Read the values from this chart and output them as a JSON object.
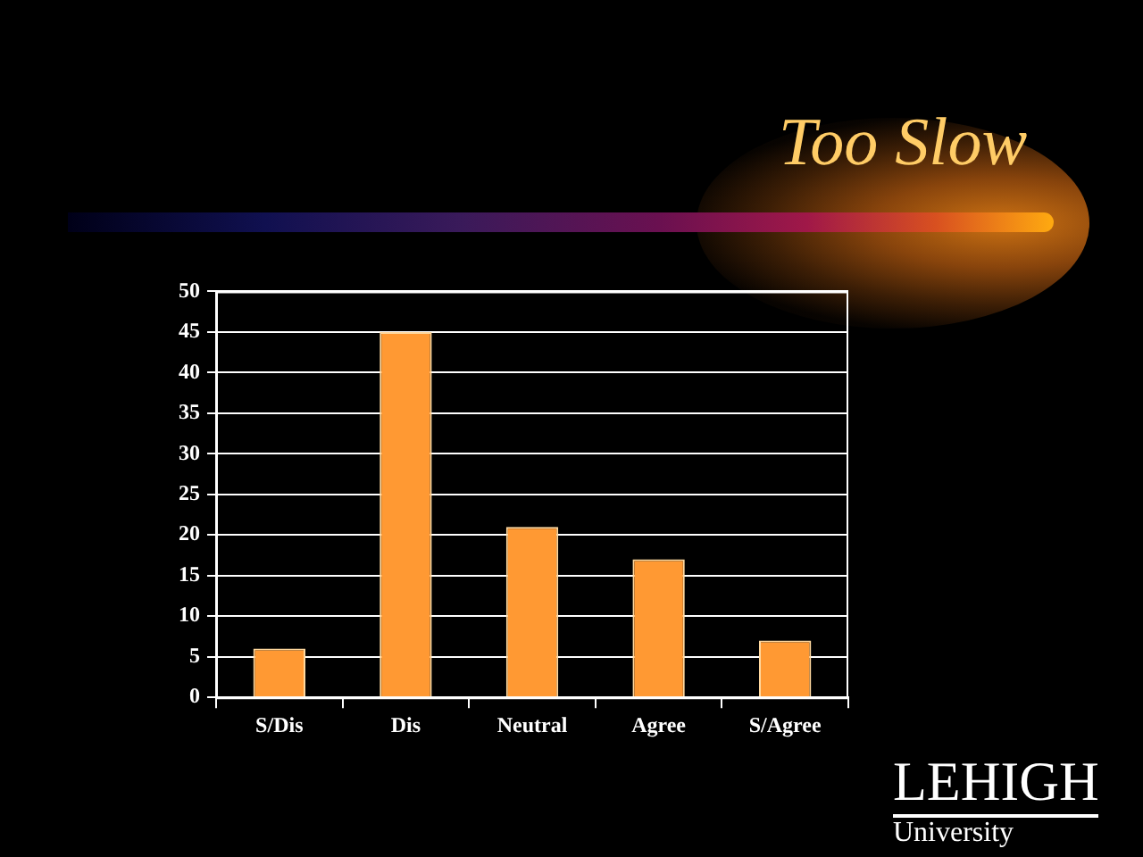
{
  "chart_data": {
    "type": "bar",
    "title": "Too Slow",
    "categories": [
      "S/Dis",
      "Dis",
      "Neutral",
      "Agree",
      "S/Agree"
    ],
    "values": [
      6,
      45,
      21,
      17,
      7
    ],
    "color": "#ff9933",
    "ylim": [
      0,
      50
    ],
    "yticks": [
      0,
      5,
      10,
      15,
      20,
      25,
      30,
      35,
      40,
      45,
      50
    ],
    "grid": "y",
    "legend": false,
    "annotations": [
      "LEHIGH",
      "University"
    ]
  }
}
